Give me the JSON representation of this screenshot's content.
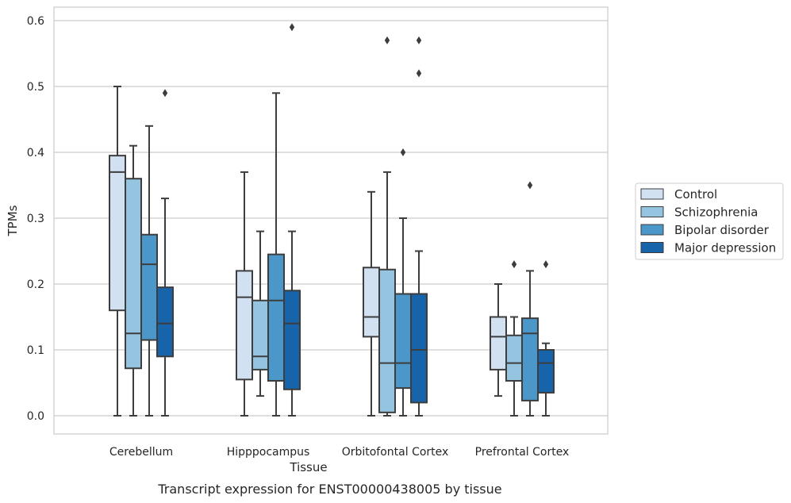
{
  "caption": "Transcript expression for ENST00000438005 by tissue",
  "chart_data": {
    "type": "box",
    "title": "",
    "xlabel": "Tissue",
    "ylabel": "TPMs",
    "ylim": [
      -0.028,
      0.62
    ],
    "yticks": [
      0.0,
      0.1,
      0.2,
      0.3,
      0.4,
      0.5,
      0.6
    ],
    "ytick_labels": [
      "0.0",
      "0.1",
      "0.2",
      "0.3",
      "0.4",
      "0.5",
      "0.6"
    ],
    "grid": "horizontal",
    "legend_position": "outside-right",
    "categories": [
      "Cerebellum",
      "Hipppocampus",
      "Orbitofontal Cortex",
      "Prefrontal Cortex"
    ],
    "series": [
      {
        "name": "Control",
        "color": "#d1e1f1",
        "boxes": [
          {
            "whislo": 0.0,
            "q1": 0.16,
            "med": 0.37,
            "q3": 0.395,
            "whishi": 0.5,
            "fliers": []
          },
          {
            "whislo": 0.0,
            "q1": 0.055,
            "med": 0.18,
            "q3": 0.22,
            "whishi": 0.37,
            "fliers": []
          },
          {
            "whislo": 0.0,
            "q1": 0.12,
            "med": 0.15,
            "q3": 0.225,
            "whishi": 0.34,
            "fliers": []
          },
          {
            "whislo": 0.03,
            "q1": 0.07,
            "med": 0.12,
            "q3": 0.15,
            "whishi": 0.2,
            "fliers": []
          }
        ]
      },
      {
        "name": "Schizophrenia",
        "color": "#94c4df",
        "boxes": [
          {
            "whislo": 0.0,
            "q1": 0.072,
            "med": 0.125,
            "q3": 0.36,
            "whishi": 0.41,
            "fliers": []
          },
          {
            "whislo": 0.03,
            "q1": 0.07,
            "med": 0.09,
            "q3": 0.175,
            "whishi": 0.28,
            "fliers": []
          },
          {
            "whislo": 0.0,
            "q1": 0.005,
            "med": 0.08,
            "q3": 0.222,
            "whishi": 0.37,
            "fliers": [
              0.57
            ]
          },
          {
            "whislo": 0.0,
            "q1": 0.053,
            "med": 0.08,
            "q3": 0.122,
            "whishi": 0.15,
            "fliers": [
              0.23
            ]
          }
        ]
      },
      {
        "name": "Bipolar disorder",
        "color": "#4b97c9",
        "boxes": [
          {
            "whislo": 0.0,
            "q1": 0.115,
            "med": 0.23,
            "q3": 0.275,
            "whishi": 0.44,
            "fliers": []
          },
          {
            "whislo": 0.0,
            "q1": 0.053,
            "med": 0.175,
            "q3": 0.245,
            "whishi": 0.49,
            "fliers": []
          },
          {
            "whislo": 0.0,
            "q1": 0.042,
            "med": 0.08,
            "q3": 0.185,
            "whishi": 0.3,
            "fliers": [
              0.4
            ]
          },
          {
            "whislo": 0.0,
            "q1": 0.023,
            "med": 0.125,
            "q3": 0.148,
            "whishi": 0.22,
            "fliers": [
              0.35
            ]
          }
        ]
      },
      {
        "name": "Major depression",
        "color": "#1764ab",
        "boxes": [
          {
            "whislo": 0.0,
            "q1": 0.09,
            "med": 0.14,
            "q3": 0.195,
            "whishi": 0.33,
            "fliers": [
              0.49
            ]
          },
          {
            "whislo": 0.0,
            "q1": 0.04,
            "med": 0.14,
            "q3": 0.19,
            "whishi": 0.28,
            "fliers": [
              0.59
            ]
          },
          {
            "whislo": 0.0,
            "q1": 0.02,
            "med": 0.1,
            "q3": 0.185,
            "whishi": 0.25,
            "fliers": [
              0.57,
              0.52
            ]
          },
          {
            "whislo": 0.0,
            "q1": 0.035,
            "med": 0.08,
            "q3": 0.1,
            "whishi": 0.11,
            "fliers": [
              0.23
            ]
          }
        ]
      }
    ]
  }
}
